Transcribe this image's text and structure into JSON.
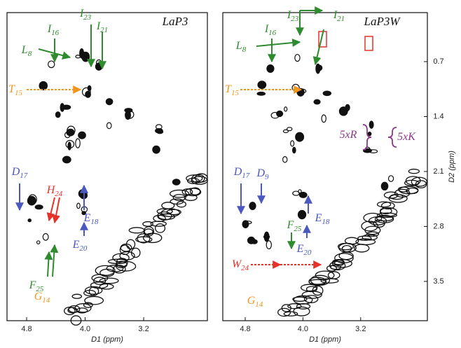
{
  "panels": [
    {
      "title": "LaP3",
      "x_label": "D1 (ppm)",
      "x_ticks": [
        4.8,
        {
          "value": 4,
          "label": "4.0"
        },
        3.2
      ],
      "annotations": [
        {
          "letter": "I",
          "sub": "16"
        },
        {
          "letter": "I",
          "sub": "23"
        },
        {
          "letter": "I",
          "sub": "21"
        },
        {
          "letter": "L",
          "sub": "8"
        },
        {
          "letter": "T",
          "sub": "15"
        },
        {
          "letter": "D",
          "sub": "17"
        },
        {
          "letter": "H",
          "sub": "24"
        },
        {
          "letter": "E",
          "sub": "18"
        },
        {
          "letter": "E",
          "sub": "20"
        },
        {
          "letter": "F",
          "sub": "25"
        },
        {
          "letter": "G",
          "sub": "14"
        }
      ]
    },
    {
      "title": "LaP3W",
      "x_label": "D1 (ppm)",
      "y_label": "D2 (ppm)",
      "x_ticks": [
        4.8,
        {
          "value": 4,
          "label": "4.0"
        },
        3.2
      ],
      "y_ticks": [
        0.7,
        1.4,
        2.1,
        2.8,
        3.5
      ],
      "annotations": [
        {
          "letter": "I",
          "sub": "16"
        },
        {
          "letter": "I",
          "sub": "23"
        },
        {
          "letter": "I",
          "sub": "21"
        },
        {
          "letter": "L",
          "sub": "8"
        },
        {
          "letter": "T",
          "sub": "15"
        },
        {
          "letter": "5xR"
        },
        {
          "letter": "5xK"
        },
        {
          "letter": "D",
          "sub": "17"
        },
        {
          "letter": "D",
          "sub": "9"
        },
        {
          "letter": "E",
          "sub": "18"
        },
        {
          "letter": "F",
          "sub": "25"
        },
        {
          "letter": "E",
          "sub": "20"
        },
        {
          "letter": "W",
          "sub": "24"
        },
        {
          "letter": "G",
          "sub": "14"
        }
      ]
    }
  ]
}
